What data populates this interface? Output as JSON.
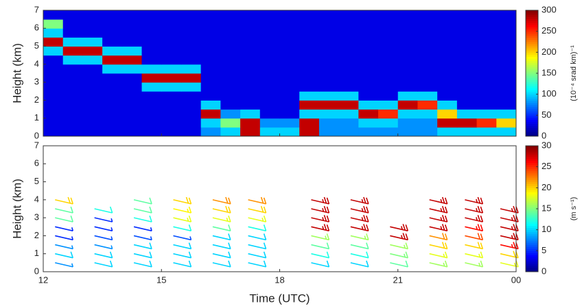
{
  "chart_data": [
    {
      "type": "heatmap",
      "ylabel": "Height (km)",
      "colorbar_label": "(10⁻⁴ srad km)⁻¹",
      "xbins": [
        12,
        12.5,
        13,
        13.5,
        14,
        14.5,
        15,
        15.5,
        16,
        16.5,
        17,
        17.5,
        18,
        18.5,
        19,
        19.5,
        20,
        20.5,
        21,
        21.5,
        22,
        22.5,
        23,
        23.5,
        24
      ],
      "ybins": [
        0,
        0.5,
        1,
        1.5,
        2,
        2.5,
        3,
        3.5,
        4,
        4.5,
        5,
        5.5,
        6,
        6.5,
        7
      ],
      "values": [
        [
          30,
          30,
          30,
          30,
          30,
          30,
          30,
          30,
          80,
          100,
          280,
          100,
          100,
          280,
          80,
          80,
          80,
          80,
          80,
          80,
          100,
          100,
          100,
          100
        ],
        [
          30,
          30,
          30,
          30,
          30,
          30,
          30,
          30,
          100,
          150,
          280,
          80,
          80,
          280,
          80,
          80,
          100,
          100,
          80,
          80,
          280,
          280,
          250,
          200
        ],
        [
          30,
          30,
          30,
          30,
          30,
          30,
          30,
          30,
          280,
          80,
          100,
          30,
          30,
          100,
          100,
          100,
          280,
          250,
          100,
          100,
          200,
          100,
          100,
          100
        ],
        [
          30,
          30,
          30,
          30,
          30,
          30,
          30,
          30,
          100,
          30,
          30,
          30,
          30,
          280,
          280,
          280,
          100,
          100,
          280,
          250,
          100,
          30,
          30,
          30
        ],
        [
          30,
          30,
          30,
          30,
          30,
          30,
          30,
          30,
          30,
          30,
          30,
          30,
          30,
          100,
          100,
          100,
          30,
          30,
          100,
          100,
          30,
          30,
          30,
          30
        ],
        [
          30,
          30,
          30,
          30,
          30,
          100,
          100,
          100,
          30,
          30,
          30,
          30,
          30,
          30,
          30,
          30,
          30,
          30,
          30,
          30,
          30,
          30,
          30,
          30
        ],
        [
          30,
          30,
          30,
          30,
          30,
          280,
          280,
          280,
          30,
          30,
          30,
          30,
          30,
          30,
          30,
          30,
          30,
          30,
          30,
          30,
          30,
          30,
          30,
          30
        ],
        [
          30,
          30,
          30,
          100,
          100,
          100,
          100,
          100,
          30,
          30,
          30,
          30,
          30,
          30,
          30,
          30,
          30,
          30,
          30,
          30,
          30,
          30,
          30,
          30
        ],
        [
          30,
          100,
          100,
          280,
          280,
          30,
          30,
          30,
          30,
          30,
          30,
          30,
          30,
          30,
          30,
          30,
          30,
          30,
          30,
          30,
          30,
          30,
          30,
          30
        ],
        [
          100,
          280,
          280,
          100,
          100,
          30,
          30,
          30,
          30,
          30,
          30,
          30,
          30,
          30,
          30,
          30,
          30,
          30,
          30,
          30,
          30,
          30,
          30,
          30
        ],
        [
          280,
          100,
          100,
          30,
          30,
          30,
          30,
          30,
          30,
          30,
          30,
          30,
          30,
          30,
          30,
          30,
          30,
          30,
          30,
          30,
          30,
          30,
          30,
          30
        ],
        [
          100,
          30,
          30,
          30,
          30,
          30,
          30,
          30,
          30,
          30,
          30,
          30,
          30,
          30,
          30,
          30,
          30,
          30,
          30,
          30,
          30,
          30,
          30,
          30
        ],
        [
          150,
          30,
          30,
          30,
          30,
          30,
          30,
          30,
          30,
          30,
          30,
          30,
          30,
          30,
          30,
          30,
          30,
          30,
          30,
          30,
          30,
          30,
          30,
          30
        ],
        [
          30,
          30,
          30,
          30,
          30,
          30,
          30,
          30,
          30,
          30,
          30,
          30,
          30,
          30,
          30,
          30,
          30,
          30,
          30,
          30,
          30,
          30,
          30,
          30
        ]
      ],
      "clim": [
        0,
        300
      ],
      "cticks": [
        0,
        50,
        100,
        150,
        200,
        250,
        300
      ],
      "xlim": [
        12,
        24
      ],
      "xticks": [
        12,
        15,
        18,
        21,
        24
      ],
      "ylim": [
        0,
        7
      ],
      "yticks": [
        0,
        1,
        2,
        3,
        4,
        5,
        6,
        7
      ]
    },
    {
      "type": "barbs",
      "ylabel": "Height (km)",
      "xlabel": "Time (UTC)",
      "colorbar_label": "(m s⁻¹)",
      "x": [
        12.3,
        13.3,
        14.3,
        15.3,
        16.3,
        17.2,
        18.8,
        19.8,
        20.8,
        21.8,
        22.7,
        23.6
      ],
      "y": [
        0.5,
        1,
        1.5,
        2,
        2.5,
        3,
        3.5,
        4
      ],
      "values": [
        [
          8,
          10,
          8,
          5,
          5,
          14,
          14,
          20
        ],
        [
          10,
          10,
          8,
          6,
          5,
          5,
          12,
          null
        ],
        [
          10,
          10,
          10,
          6,
          5,
          12,
          14,
          14
        ],
        [
          10,
          10,
          10,
          6,
          12,
          18,
          19,
          20
        ],
        [
          10,
          10,
          10,
          10,
          14,
          18,
          20,
          22
        ],
        [
          10,
          10,
          10,
          10,
          12,
          18,
          20,
          22
        ],
        [
          10,
          12,
          14,
          16,
          28,
          28,
          28,
          28
        ],
        [
          10,
          12,
          14,
          16,
          28,
          28,
          28,
          28
        ],
        [
          14,
          15,
          16,
          28,
          28,
          null,
          null,
          null
        ],
        [
          16,
          18,
          20,
          22,
          28,
          28,
          28,
          28
        ],
        [
          16,
          18,
          20,
          24,
          26,
          28,
          28,
          28
        ],
        [
          18,
          20,
          26,
          28,
          28,
          28,
          28,
          null
        ]
      ],
      "clim": [
        0,
        30
      ],
      "cticks": [
        0,
        5,
        10,
        15,
        20,
        25,
        30
      ],
      "xlim": [
        12,
        24
      ],
      "xticks": [
        12,
        15,
        18,
        21,
        {
          "value": 24,
          "label": "00"
        }
      ],
      "ylim": [
        0,
        7
      ],
      "yticks": [
        0,
        1,
        2,
        3,
        4,
        5,
        6,
        7
      ]
    }
  ]
}
